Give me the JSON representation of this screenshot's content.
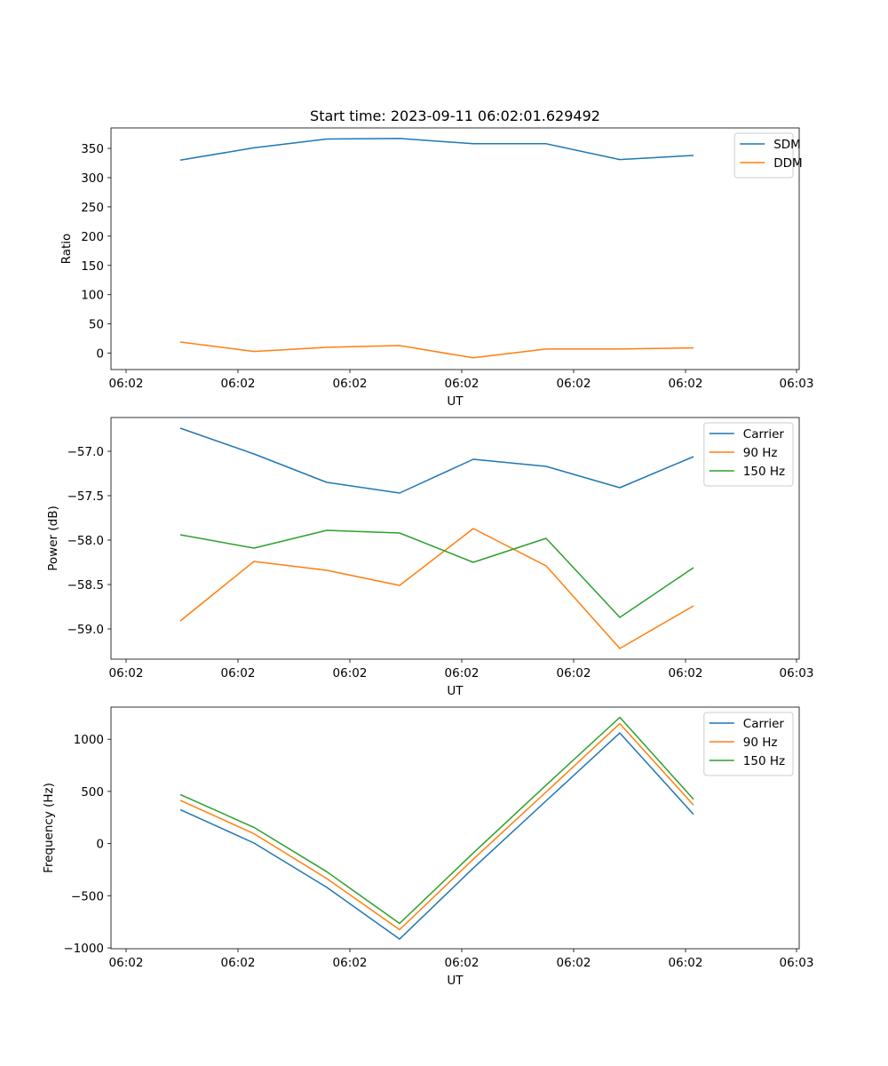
{
  "title": "Start time: 2023-09-11 06:02:01.629492",
  "colors": {
    "blue": "#1f77b4",
    "orange": "#ff7f0e",
    "green": "#2ca02c"
  },
  "chart_data": [
    {
      "type": "line",
      "ylabel": "Ratio",
      "xlabel": "UT",
      "xticks": [
        "06:02",
        "06:02",
        "06:02",
        "06:02",
        "06:02",
        "06:02",
        "06:02",
        "06:03"
      ],
      "ylim": [
        -28,
        385
      ],
      "yticks": [
        0,
        50,
        100,
        150,
        200,
        250,
        300,
        350
      ],
      "ytick_labels": [
        "0",
        "50",
        "100",
        "150",
        "200",
        "250",
        "300",
        "350"
      ],
      "legend_position": "top-right",
      "series": [
        {
          "name": "SDM",
          "color": "#1f77b4",
          "values": [
            330,
            351,
            366,
            367,
            358,
            358,
            331,
            338
          ]
        },
        {
          "name": "DDM",
          "color": "#ff7f0e",
          "values": [
            19,
            3,
            10,
            13,
            -8,
            7,
            7,
            9
          ]
        }
      ]
    },
    {
      "type": "line",
      "ylabel": "Power (dB)",
      "xlabel": "UT",
      "xticks": [
        "06:02",
        "06:02",
        "06:02",
        "06:02",
        "06:02",
        "06:02",
        "06:02",
        "06:03"
      ],
      "ylim": [
        -59.34,
        -56.62
      ],
      "yticks": [
        -59.0,
        -58.5,
        -58.0,
        -57.5,
        -57.0
      ],
      "ytick_labels": [
        "−59.0",
        "−58.5",
        "−58.0",
        "−57.5",
        "−57.0"
      ],
      "legend_position": "top-right",
      "series": [
        {
          "name": "Carrier",
          "color": "#1f77b4",
          "values": [
            -56.74,
            -57.03,
            -57.35,
            -57.47,
            -57.09,
            -57.17,
            -57.41,
            -57.06
          ]
        },
        {
          "name": "90 Hz",
          "color": "#ff7f0e",
          "values": [
            -58.91,
            -58.24,
            -58.34,
            -58.51,
            -57.87,
            -58.29,
            -59.22,
            -58.74
          ]
        },
        {
          "name": "150 Hz",
          "color": "#2ca02c",
          "values": [
            -57.94,
            -58.09,
            -57.89,
            -57.92,
            -58.25,
            -57.98,
            -58.87,
            -58.31
          ]
        }
      ]
    },
    {
      "type": "line",
      "ylabel": "Frequency (Hz)",
      "xlabel": "UT",
      "xticks": [
        "06:02",
        "06:02",
        "06:02",
        "06:02",
        "06:02",
        "06:02",
        "06:02",
        "06:03"
      ],
      "ylim": [
        -1008,
        1308
      ],
      "yticks": [
        -1000,
        -500,
        0,
        500,
        1000
      ],
      "ytick_labels": [
        "−1000",
        "−500",
        "0",
        "500",
        "1000"
      ],
      "legend_position": "top-right",
      "series": [
        {
          "name": "Carrier",
          "color": "#1f77b4",
          "values": [
            325,
            5,
            -420,
            -915,
            -235,
            410,
            1060,
            280
          ]
        },
        {
          "name": "90 Hz",
          "color": "#ff7f0e",
          "values": [
            415,
            95,
            -335,
            -825,
            -150,
            495,
            1150,
            370
          ]
        },
        {
          "name": "150 Hz",
          "color": "#2ca02c",
          "values": [
            470,
            155,
            -270,
            -765,
            -90,
            560,
            1210,
            425
          ]
        }
      ]
    }
  ]
}
